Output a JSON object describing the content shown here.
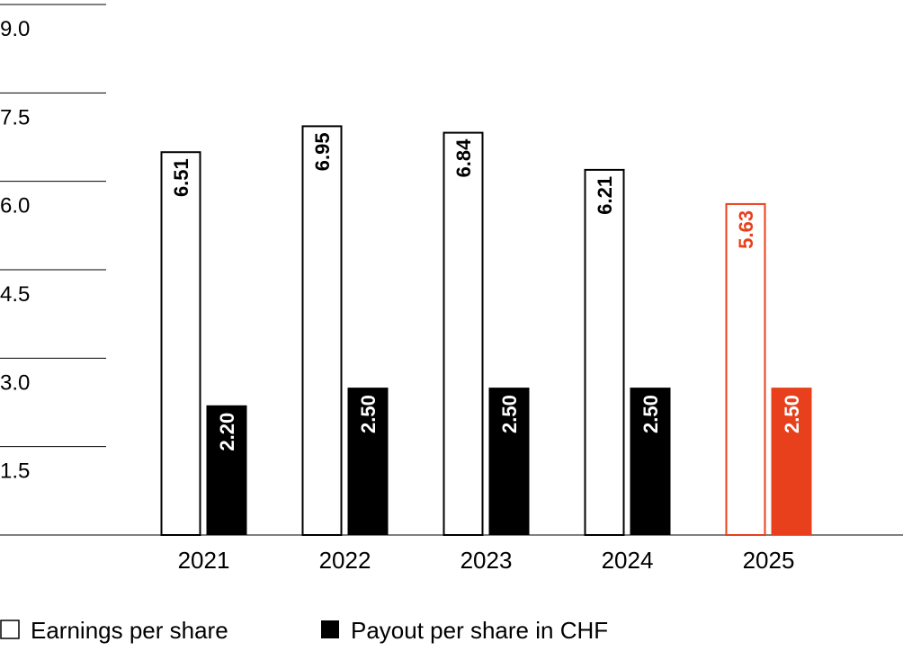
{
  "chart_data": {
    "type": "bar",
    "categories": [
      "2021",
      "2022",
      "2023",
      "2024",
      "2025"
    ],
    "series": [
      {
        "name": "Earnings per share",
        "style": "outline",
        "color": "#000000",
        "colors": [
          "#000000",
          "#000000",
          "#000000",
          "#000000",
          "#e8401c"
        ],
        "values": [
          6.51,
          6.95,
          6.84,
          6.21,
          5.63
        ]
      },
      {
        "name": "Payout per share in CHF",
        "style": "filled",
        "color": "#000000",
        "colors": [
          "#000000",
          "#000000",
          "#000000",
          "#000000",
          "#e8401c"
        ],
        "values": [
          2.2,
          2.5,
          2.5,
          2.5,
          2.5
        ],
        "value_labels": [
          "2.20",
          "2.50",
          "2.50",
          "2.50",
          "2.50"
        ]
      }
    ],
    "ylim": [
      0,
      9
    ],
    "yticks": [
      1.5,
      {
        "value": 3,
        "label": "3.0"
      },
      4.5,
      {
        "value": 6,
        "label": "6.0"
      },
      7.5,
      {
        "value": 9,
        "label": "9.0"
      }
    ],
    "grid": true,
    "legend": "bottom-left"
  }
}
